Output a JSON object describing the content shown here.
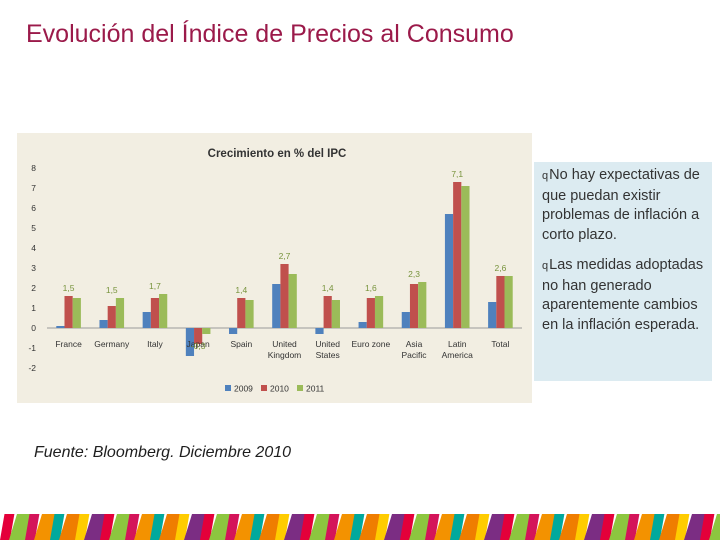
{
  "title": "Evolución del Índice de Precios al Consumo",
  "notes": [
    "No hay expectativas de que puedan existir problemas de inflación a corto plazo.",
    "Las medidas adoptadas no han generado aparentemente cambios en la inflación esperada."
  ],
  "source": "Fuente: Bloomberg. Diciembre 2010",
  "colors": {
    "title": "#9b1a4a",
    "chart_bg": "#f2eee2",
    "notes_bg": "#dcebf1",
    "series_2009": "#4f81bd",
    "series_2010": "#c0504d",
    "series_2011": "#9bbb59",
    "label": "#77933c"
  },
  "chart_data": {
    "type": "bar",
    "title": "Crecimiento en % del IPC",
    "xlabel": "",
    "ylabel": "",
    "ylim": [
      -2,
      8
    ],
    "yticks": [
      -2,
      -1,
      0,
      1,
      2,
      3,
      4,
      5,
      6,
      7,
      8
    ],
    "grid": false,
    "legend": "bottom",
    "categories": [
      [
        "France"
      ],
      [
        "Germany"
      ],
      [
        "Italy"
      ],
      [
        "Japan"
      ],
      [
        "Spain"
      ],
      [
        "United",
        "Kingdom"
      ],
      [
        "United",
        "States"
      ],
      [
        "Euro zone"
      ],
      [
        "Asia",
        "Pacific"
      ],
      [
        "Latin",
        "America"
      ],
      [
        "Total"
      ]
    ],
    "series": [
      {
        "name": "2009",
        "values": [
          0.1,
          0.4,
          0.8,
          -1.4,
          -0.3,
          2.2,
          -0.3,
          0.3,
          0.8,
          5.7,
          1.3
        ]
      },
      {
        "name": "2010",
        "values": [
          1.6,
          1.1,
          1.5,
          -0.8,
          1.5,
          3.2,
          1.6,
          1.5,
          2.2,
          7.3,
          2.6
        ]
      },
      {
        "name": "2011",
        "values": [
          1.5,
          1.5,
          1.7,
          -0.3,
          1.4,
          2.7,
          1.4,
          1.6,
          2.3,
          7.1,
          2.6
        ]
      }
    ],
    "data_labels": [
      "1,5",
      "1,5",
      "1,7",
      "-0,3",
      "1,4",
      "2,7",
      "1,4",
      "1,6",
      "2,3",
      "7,1",
      "2,6"
    ]
  }
}
